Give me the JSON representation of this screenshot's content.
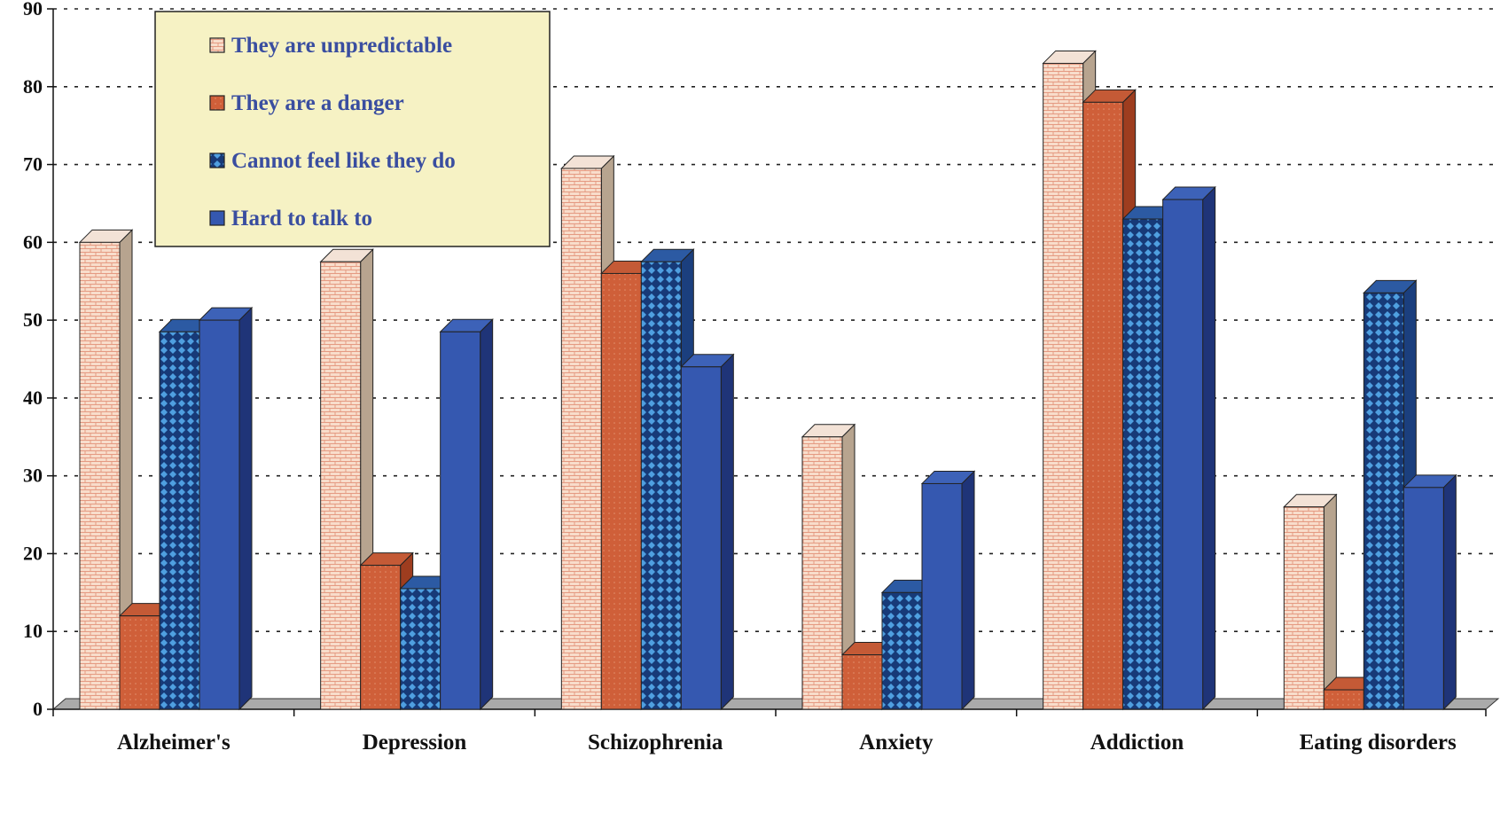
{
  "chart_data": {
    "type": "bar",
    "title": "",
    "xlabel": "",
    "ylabel": "",
    "ylim": [
      0,
      90
    ],
    "yticks": [
      0,
      10,
      20,
      30,
      40,
      50,
      60,
      70,
      80,
      90
    ],
    "grid": true,
    "legend_position": "top-left",
    "categories": [
      "Alzheimer's",
      "Depression",
      "Schizophrenia",
      "Anxiety",
      "Addiction",
      "Eating disorders"
    ],
    "series": [
      {
        "name": "They are unpredictable",
        "values": [
          60,
          57.5,
          69.5,
          35,
          83,
          26
        ],
        "color": "#f6d9c8",
        "side_color": "#b7a48f",
        "pattern": "brick"
      },
      {
        "name": "They are a danger",
        "values": [
          12,
          18.5,
          56,
          7,
          78,
          2.5
        ],
        "color": "#d3643e",
        "side_color": "#9e3d1f",
        "pattern": "dots"
      },
      {
        "name": "Cannot feel like they do",
        "values": [
          48.5,
          15.5,
          57.5,
          15,
          63,
          53.5
        ],
        "color": "#2e6fc0",
        "side_color": "#1b3f7e",
        "pattern": "diamonds"
      },
      {
        "name": "Hard to talk to",
        "values": [
          50,
          48.5,
          44,
          29,
          65.5,
          28.5
        ],
        "color": "#3558b0",
        "side_color": "#1f3478",
        "pattern": "solid"
      }
    ]
  }
}
